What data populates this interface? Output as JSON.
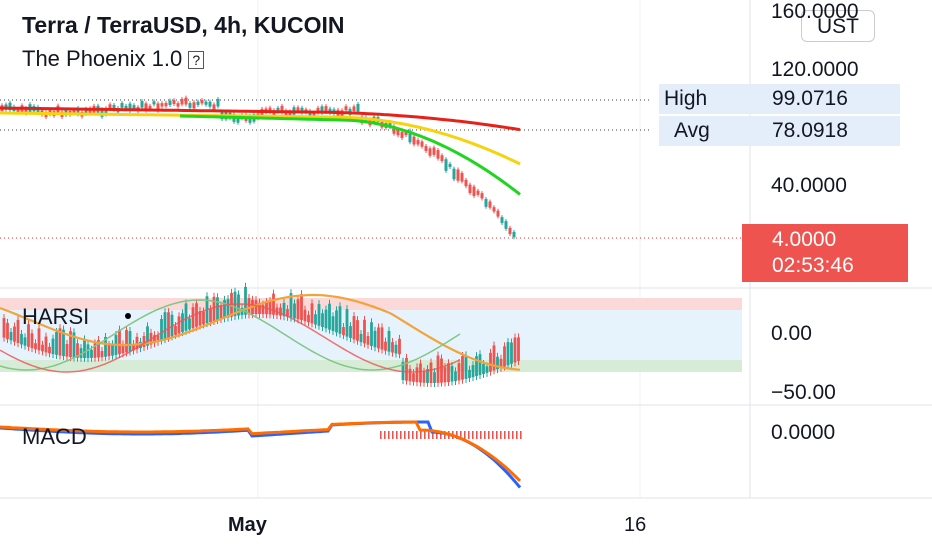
{
  "header": {
    "symbol_title": "Terra / TerraUSD, 4h, KUCOIN",
    "indicator_title": "The Phoenix 1.0",
    "help_glyph": "?"
  },
  "price_scale": {
    "unit_button": "UST",
    "labels": [
      "160.0000",
      "120.0000",
      "40.0000"
    ],
    "high_label": "High",
    "high_value": "99.0716",
    "avg_label": "Avg",
    "avg_value": "78.0918",
    "last_price": "4.0000",
    "countdown": "02:53:46"
  },
  "harsi": {
    "label": "HARSI",
    "scale_labels": [
      "0.00",
      "−50.00"
    ]
  },
  "macd": {
    "label": "MACD",
    "scale_label": "0.0000"
  },
  "time_axis": {
    "labels": [
      "May",
      "16"
    ]
  },
  "colors": {
    "up": "#26a69a",
    "down": "#ef5350",
    "ma_red": "#e8201a",
    "ma_yellow": "#f5d30f",
    "ma_green": "#1fd51f",
    "harsi_orange": "#f2a33a",
    "harsi_green": "#81c784",
    "macd_blue": "#2962ff",
    "macd_orange": "#ff6d00"
  }
}
